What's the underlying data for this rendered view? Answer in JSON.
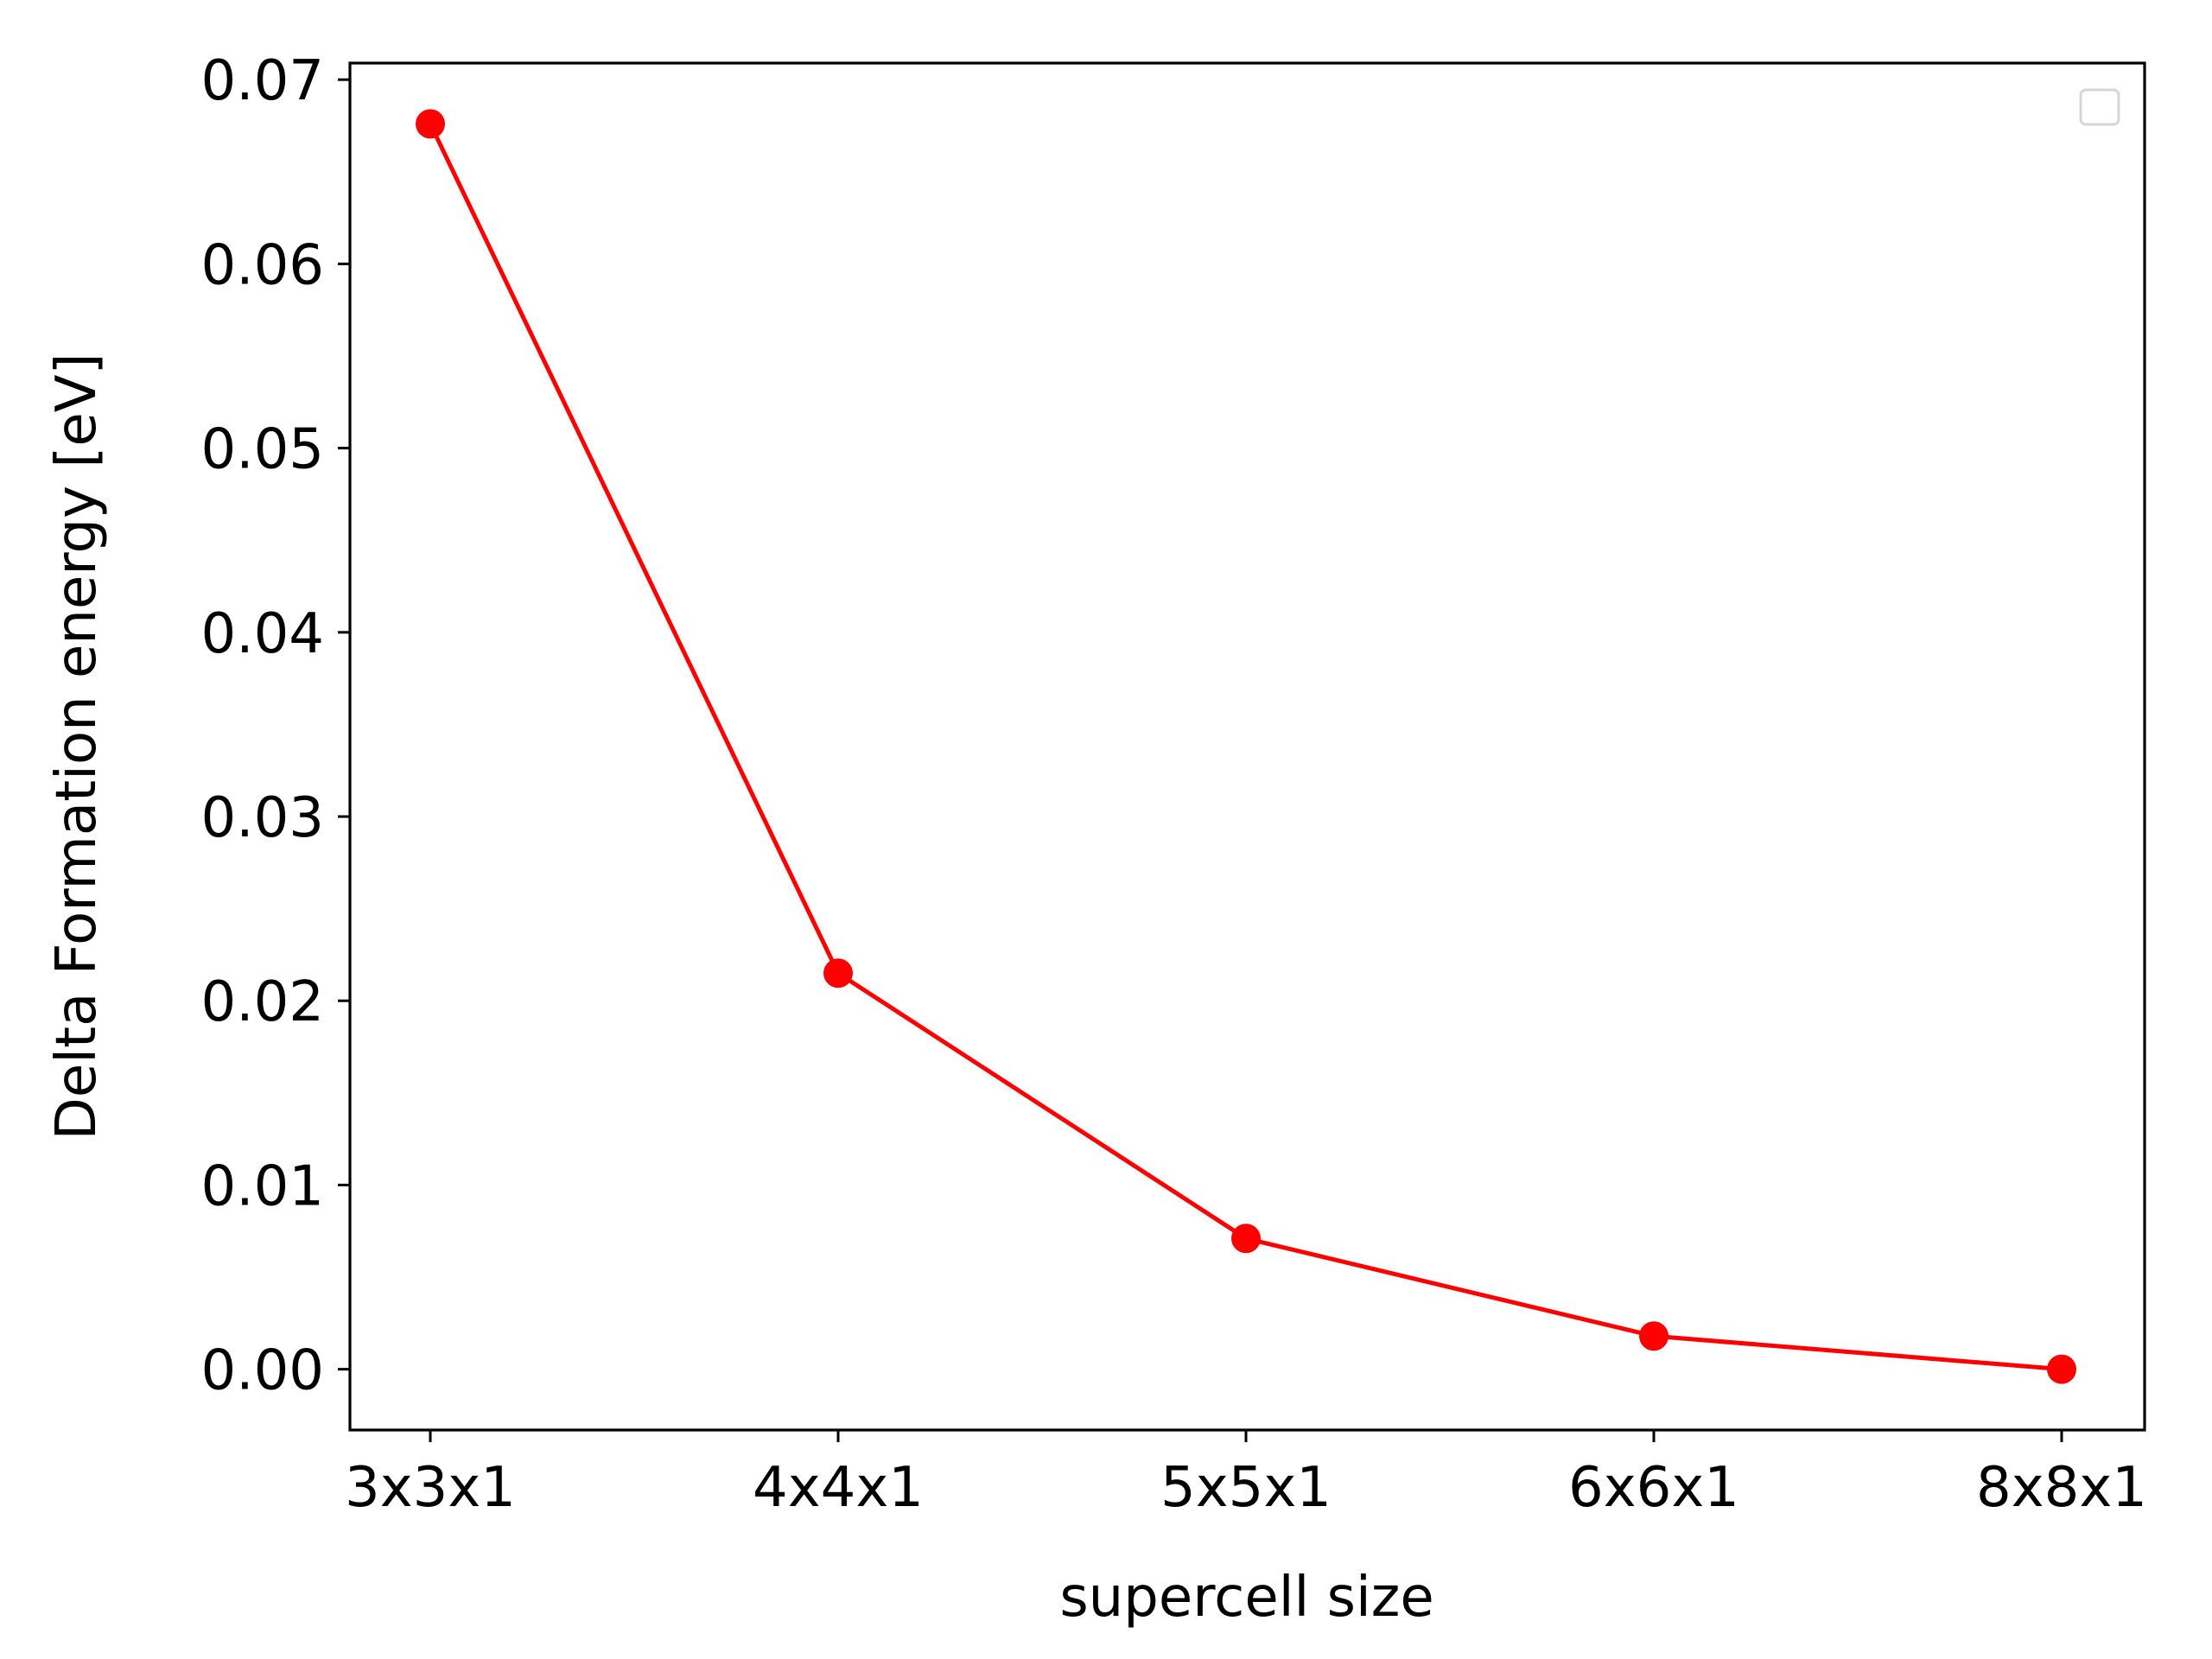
{
  "chart_data": {
    "type": "line",
    "title": "",
    "xlabel": "supercell size",
    "ylabel": "Delta Formation energy [eV]",
    "categories": [
      "3x3x1",
      "4x4x1",
      "5x5x1",
      "6x6x1",
      "8x8x1"
    ],
    "series": [
      {
        "values": [
          0.0676,
          0.0215,
          0.0071,
          0.0018,
          0.0
        ],
        "color": "#ff0000",
        "marker": "circle"
      }
    ],
    "ylim": [
      -0.0033,
      0.0709
    ],
    "yticks": [
      0.0,
      0.01,
      0.02,
      0.03,
      0.04,
      0.05,
      0.06,
      0.07
    ],
    "ytick_labels": [
      "0.00",
      "0.01",
      "0.02",
      "0.03",
      "0.04",
      "0.05",
      "0.06",
      "0.07"
    ],
    "grid": false,
    "legend": {
      "placement": "top-right",
      "entries": []
    }
  }
}
